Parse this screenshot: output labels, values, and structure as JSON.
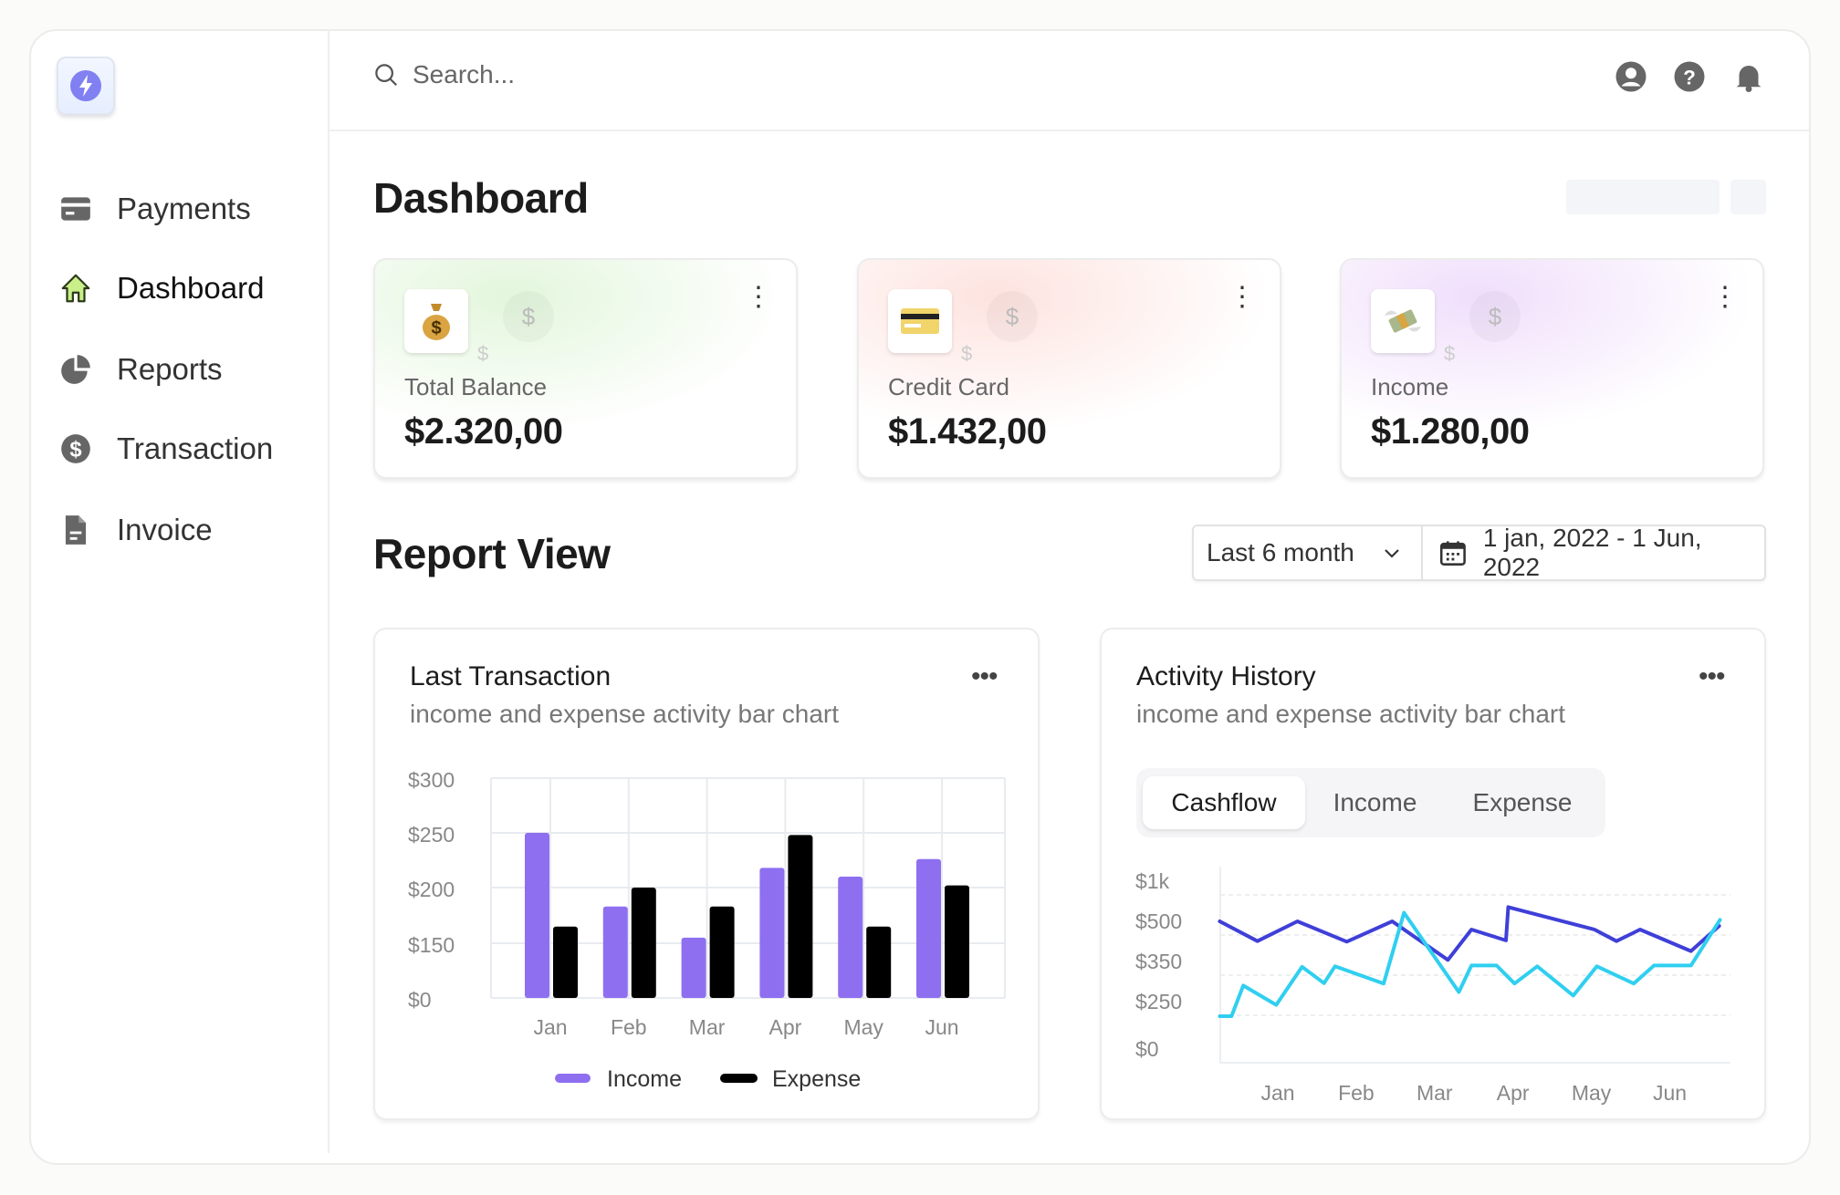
{
  "sidebar": {
    "logo_icon": "lightning-bolt-icon",
    "items": [
      {
        "label": "Payments",
        "icon": "credit-card-icon",
        "active": false
      },
      {
        "label": "Dashboard",
        "icon": "home-icon",
        "active": true
      },
      {
        "label": "Reports",
        "icon": "pie-chart-icon",
        "active": false
      },
      {
        "label": "Transaction",
        "icon": "dollar-circle-icon",
        "active": false
      },
      {
        "label": "Invoice",
        "icon": "document-icon",
        "active": false
      }
    ]
  },
  "header": {
    "search_placeholder": "Search...",
    "icons": [
      "user-icon",
      "help-icon",
      "bell-icon"
    ]
  },
  "page_title": "Dashboard",
  "cards": [
    {
      "label": "Total Balance",
      "value": "$2.320,00",
      "icon": "money-bag-icon",
      "accent": "#dff5d8"
    },
    {
      "label": "Credit Card",
      "value": "$1.432,00",
      "icon": "credit-card-icon",
      "accent": "#fde0dc"
    },
    {
      "label": "Income",
      "value": "$1.280,00",
      "icon": "flying-money-icon",
      "accent": "#eedcfa"
    }
  ],
  "report": {
    "title": "Report View",
    "period": "Last 6 month",
    "date_range": "1 jan, 2022 - 1 Jun, 2022"
  },
  "chart_data": [
    {
      "type": "bar",
      "title": "Last Transaction",
      "subtitle": "income and expense activity bar chart",
      "categories": [
        "Jan",
        "Feb",
        "Mar",
        "Apr",
        "May",
        "Jun"
      ],
      "yticks": [
        "$300",
        "$250",
        "$200",
        "$150",
        "$0"
      ],
      "ytick_values": [
        300,
        250,
        200,
        150,
        0
      ],
      "series": [
        {
          "name": "Income",
          "color": "#8e6ff0",
          "values": [
            250,
            183,
            155,
            218,
            210,
            226
          ]
        },
        {
          "name": "Expense",
          "color": "#000000",
          "values": [
            165,
            200,
            183,
            248,
            165,
            202
          ]
        }
      ],
      "grid": true,
      "legend": "bottom"
    },
    {
      "type": "line",
      "title": "Activity History",
      "subtitle": "income and expense activity bar chart",
      "tabs": [
        "Cashflow",
        "Income",
        "Expense"
      ],
      "active_tab": "Cashflow",
      "categories": [
        "Jan",
        "Feb",
        "Mar",
        "Apr",
        "May",
        "Jun"
      ],
      "yticks": [
        "$1k",
        "$500",
        "$350",
        "$250",
        "$0"
      ],
      "ytick_values": [
        1000,
        500,
        350,
        250,
        0
      ],
      "series": [
        {
          "color": "#3f3fd8",
          "points": [
            [
              0.26,
              670
            ],
            [
              0.74,
              477
            ],
            [
              1.25,
              670
            ],
            [
              1.88,
              475
            ],
            [
              2.46,
              670
            ],
            [
              3.17,
              407
            ],
            [
              3.47,
              568
            ],
            [
              3.91,
              480
            ],
            [
              3.94,
              848
            ],
            [
              5.04,
              568
            ],
            [
              5.32,
              477
            ],
            [
              5.62,
              568
            ],
            [
              6.27,
              440
            ],
            [
              6.63,
              614
            ]
          ]
        },
        {
          "color": "#30cff0",
          "points": [
            [
              0.26,
              245
            ],
            [
              0.41,
              245
            ],
            [
              0.56,
              324
            ],
            [
              0.98,
              276
            ],
            [
              1.31,
              381
            ],
            [
              1.59,
              330
            ],
            [
              1.73,
              383
            ],
            [
              2.35,
              329
            ],
            [
              2.61,
              777
            ],
            [
              3.31,
              308
            ],
            [
              3.47,
              386
            ],
            [
              3.79,
              386
            ],
            [
              4.02,
              329
            ],
            [
              4.31,
              383
            ],
            [
              4.77,
              299
            ],
            [
              5.07,
              383
            ],
            [
              5.54,
              329
            ],
            [
              5.8,
              386
            ],
            [
              6.27,
              386
            ],
            [
              6.64,
              689
            ]
          ]
        }
      ],
      "grid": true
    }
  ]
}
